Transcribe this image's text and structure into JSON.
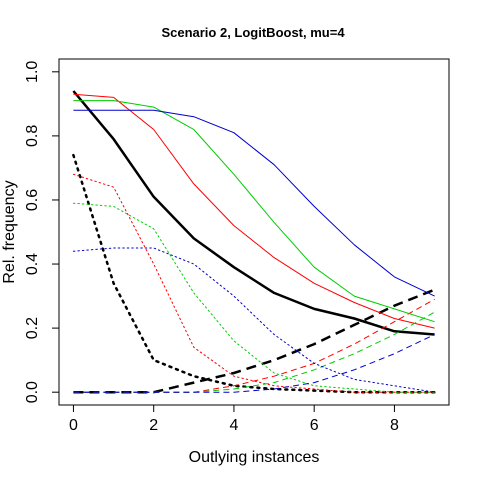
{
  "chart_data": {
    "type": "line",
    "title": "Scenario 2, LogitBoost, mu=4",
    "xlabel": "Outlying instances",
    "ylabel": "Rel. frequency",
    "xlim": [
      -0.36,
      9.36
    ],
    "ylim": [
      -0.04,
      1.04
    ],
    "x_ticks": [
      0,
      2,
      4,
      6,
      8
    ],
    "y_ticks": [
      0.0,
      0.2,
      0.4,
      0.6,
      0.8,
      1.0
    ],
    "x_tick_labels": [
      "0",
      "2",
      "4",
      "6",
      "8"
    ],
    "y_tick_labels": [
      "0.0",
      "0.2",
      "0.4",
      "0.6",
      "0.8",
      "1.0"
    ],
    "grid": false,
    "legend": "none",
    "x": [
      0,
      1,
      2,
      3,
      4,
      5,
      6,
      7,
      8,
      9
    ],
    "series": [
      {
        "color": "#000000",
        "style": "solid",
        "width": 2.5,
        "values": [
          0.94,
          0.79,
          0.61,
          0.48,
          0.39,
          0.31,
          0.26,
          0.23,
          0.19,
          0.18
        ]
      },
      {
        "color": "#000000",
        "style": "dotted",
        "width": 2.5,
        "values": [
          0.74,
          0.34,
          0.1,
          0.05,
          0.02,
          0.01,
          0.005,
          0.0,
          0.0,
          0.0
        ]
      },
      {
        "color": "#000000",
        "style": "dashed",
        "width": 2.5,
        "values": [
          0.0,
          0.0,
          0.0,
          0.03,
          0.06,
          0.1,
          0.15,
          0.21,
          0.27,
          0.32
        ]
      },
      {
        "color": "#ff0000",
        "style": "solid",
        "width": 1,
        "values": [
          0.93,
          0.92,
          0.82,
          0.65,
          0.52,
          0.42,
          0.34,
          0.28,
          0.23,
          0.2
        ]
      },
      {
        "color": "#ff0000",
        "style": "dotted",
        "width": 1,
        "values": [
          0.68,
          0.64,
          0.4,
          0.14,
          0.05,
          0.02,
          0.01,
          0.0,
          0.0,
          0.0
        ]
      },
      {
        "color": "#ff0000",
        "style": "dashed",
        "width": 1,
        "values": [
          0.0,
          0.0,
          0.0,
          0.0,
          0.02,
          0.05,
          0.09,
          0.15,
          0.22,
          0.29
        ]
      },
      {
        "color": "#00cc00",
        "style": "solid",
        "width": 1,
        "values": [
          0.91,
          0.91,
          0.89,
          0.82,
          0.68,
          0.53,
          0.39,
          0.3,
          0.26,
          0.22
        ]
      },
      {
        "color": "#00cc00",
        "style": "dotted",
        "width": 1,
        "values": [
          0.59,
          0.58,
          0.51,
          0.31,
          0.16,
          0.06,
          0.02,
          0.01,
          0.0,
          0.0
        ]
      },
      {
        "color": "#00cc00",
        "style": "dashed",
        "width": 1,
        "values": [
          0.0,
          0.0,
          0.0,
          0.0,
          0.01,
          0.03,
          0.07,
          0.12,
          0.18,
          0.25
        ]
      },
      {
        "color": "#0000cc",
        "style": "solid",
        "width": 1,
        "values": [
          0.88,
          0.88,
          0.88,
          0.86,
          0.81,
          0.71,
          0.58,
          0.46,
          0.36,
          0.3
        ]
      },
      {
        "color": "#0000cc",
        "style": "dotted",
        "width": 1,
        "values": [
          0.44,
          0.45,
          0.45,
          0.4,
          0.3,
          0.18,
          0.09,
          0.04,
          0.02,
          0.0
        ]
      },
      {
        "color": "#0000cc",
        "style": "dashed",
        "width": 1,
        "values": [
          0.0,
          0.0,
          0.0,
          0.0,
          0.0,
          0.01,
          0.03,
          0.07,
          0.12,
          0.18
        ]
      }
    ]
  }
}
